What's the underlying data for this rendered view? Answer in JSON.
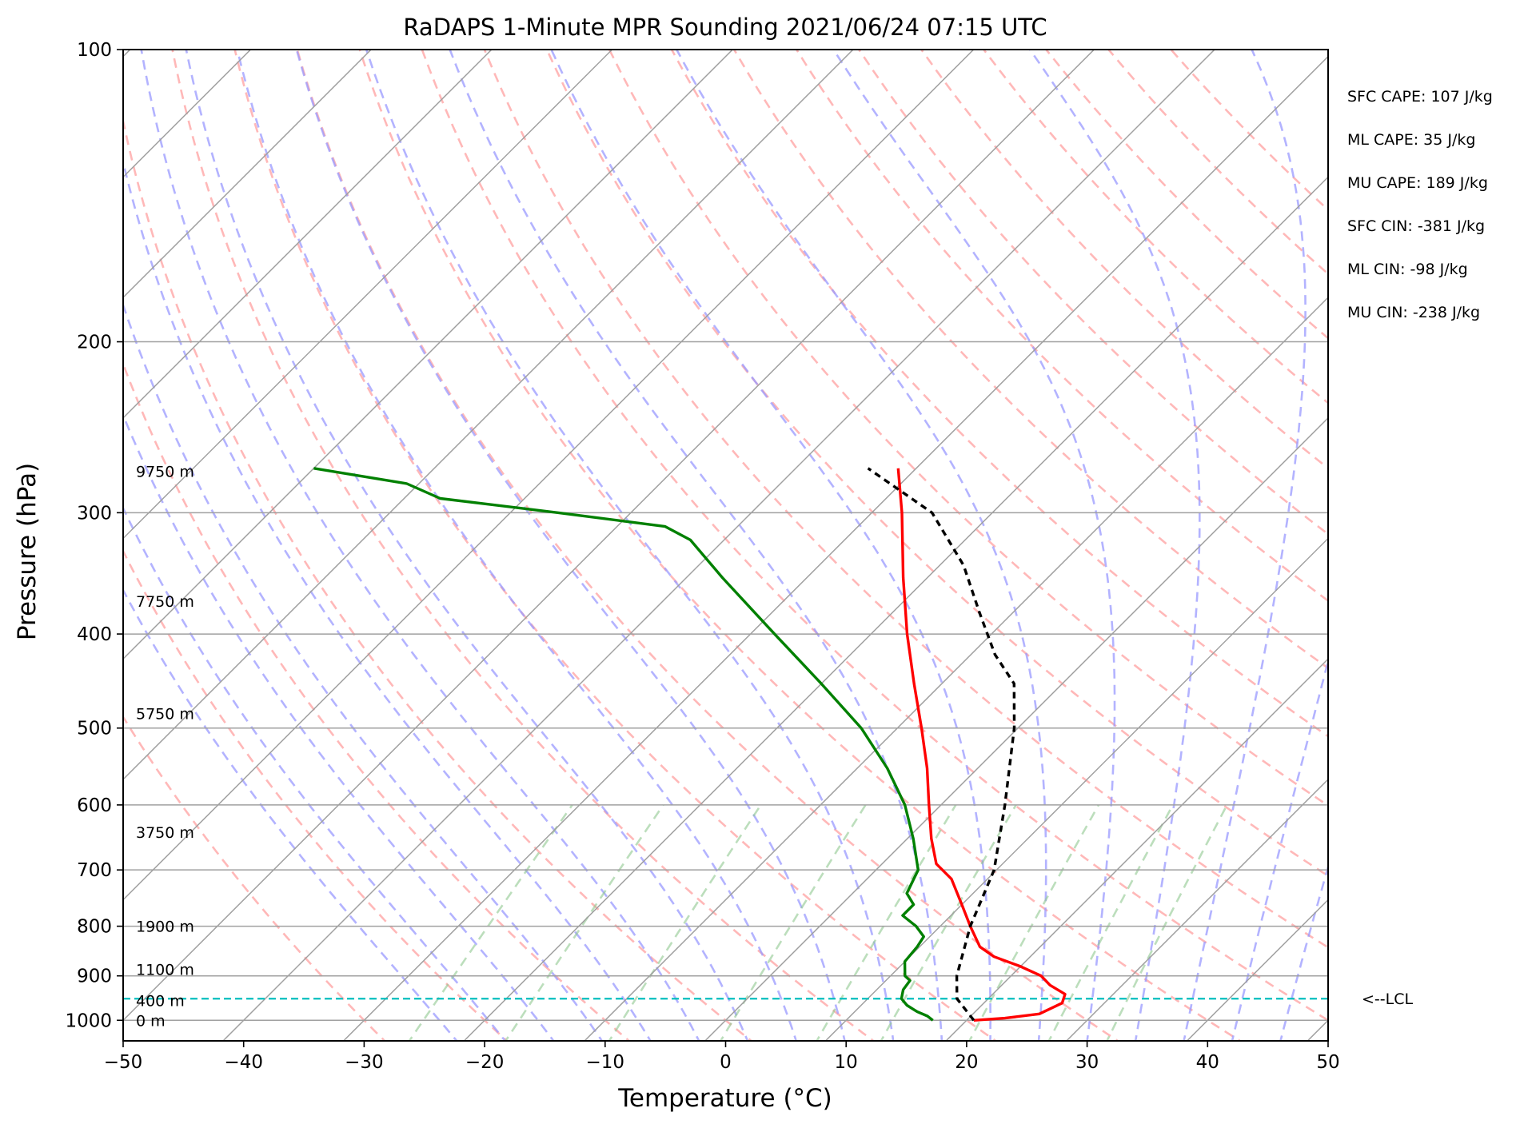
{
  "chart_data": {
    "type": "line",
    "title": "RaDAPS 1-Minute MPR Sounding 2021/06/24 07:15 UTC",
    "xlabel": "Temperature (°C)",
    "ylabel": "Pressure (hPa)",
    "xlim": [
      -50,
      50
    ],
    "ylim": [
      1050,
      100
    ],
    "y_scale": "log",
    "skew": "skew-T",
    "grid": true,
    "x_ticks": [
      -50,
      -40,
      -30,
      -20,
      -10,
      0,
      10,
      20,
      30,
      40,
      50
    ],
    "y_ticks": [
      100,
      200,
      300,
      400,
      500,
      600,
      700,
      800,
      900,
      1000
    ],
    "x_tick_labels": [
      "−50",
      "−40",
      "−30",
      "−20",
      "−10",
      "0",
      "10",
      "20",
      "30",
      "40",
      "50"
    ],
    "y_tick_labels": [
      "100",
      "200",
      "300",
      "400",
      "500",
      "600",
      "700",
      "800",
      "900",
      "1000"
    ],
    "series": [
      {
        "color": "#ff0000",
        "points": [
          [
            20.6,
            1000
          ],
          [
            23.0,
            995
          ],
          [
            25.5,
            985
          ],
          [
            26.5,
            960
          ],
          [
            26.0,
            940
          ],
          [
            24.0,
            920
          ],
          [
            22.5,
            900
          ],
          [
            20.0,
            880
          ],
          [
            17.0,
            860
          ],
          [
            15.0,
            840
          ],
          [
            12.5,
            800
          ],
          [
            10.0,
            760
          ],
          [
            7.0,
            715
          ],
          [
            4.5,
            690
          ],
          [
            2.0,
            650
          ],
          [
            -1.0,
            600
          ],
          [
            -4.2,
            550
          ],
          [
            -8.0,
            500
          ],
          [
            -12.3,
            450
          ],
          [
            -17.0,
            400
          ],
          [
            -22.0,
            350
          ],
          [
            -27.5,
            300
          ],
          [
            -31.5,
            270
          ]
        ]
      },
      {
        "color": "#008000",
        "points": [
          [
            17.2,
            1000
          ],
          [
            16.4,
            990
          ],
          [
            15.2,
            980
          ],
          [
            13.8,
            965
          ],
          [
            12.8,
            950
          ],
          [
            12.2,
            930
          ],
          [
            12.0,
            910
          ],
          [
            11.2,
            900
          ],
          [
            10.0,
            870
          ],
          [
            9.8,
            840
          ],
          [
            9.5,
            820
          ],
          [
            8.0,
            800
          ],
          [
            6.0,
            780
          ],
          [
            6.0,
            760
          ],
          [
            4.5,
            740
          ],
          [
            3.5,
            700
          ],
          [
            0.5,
            650
          ],
          [
            -3.0,
            600
          ],
          [
            -7.5,
            550
          ],
          [
            -13.0,
            500
          ],
          [
            -20.0,
            450
          ],
          [
            -28.0,
            400
          ],
          [
            -37.0,
            350
          ],
          [
            -42.8,
            320
          ],
          [
            -46.0,
            310
          ],
          [
            -56.0,
            300
          ],
          [
            -67.0,
            290
          ],
          [
            -71.0,
            280
          ],
          [
            -80.0,
            270
          ]
        ]
      },
      {
        "color": "#000000",
        "dash": "8,6",
        "points": [
          [
            20.6,
            1000
          ],
          [
            17.4,
            950
          ],
          [
            15.5,
            900
          ],
          [
            12.5,
            800
          ],
          [
            9.8,
            700
          ],
          [
            5.3,
            600
          ],
          [
            -0.3,
            500
          ],
          [
            -4.0,
            450
          ],
          [
            -8.0,
            420
          ],
          [
            -12.8,
            380
          ],
          [
            -18.0,
            340
          ],
          [
            -25.0,
            300
          ],
          [
            -34.0,
            270
          ]
        ]
      }
    ],
    "lcl": {
      "pressure": 950,
      "label": "<--LCL",
      "color": "#00bfbf"
    },
    "height_labels": [
      {
        "text": "9750 m",
        "pressure": 272
      },
      {
        "text": "7750 m",
        "pressure": 370
      },
      {
        "text": "5750 m",
        "pressure": 483
      },
      {
        "text": "3750 m",
        "pressure": 640
      },
      {
        "text": "1900 m",
        "pressure": 800
      },
      {
        "text": "1100 m",
        "pressure": 886
      },
      {
        "text": "400 m",
        "pressure": 954
      },
      {
        "text": "0 m",
        "pressure": 1000
      }
    ],
    "background": {
      "isotherm_color": "#a0a0a0",
      "dry_adiabat_color": "#ffa0a0",
      "moist_adiabat_color": "#9999ff",
      "mixing_ratio_color": "#8fc88f"
    }
  },
  "stats": [
    "SFC CAPE: 107 J/kg",
    "ML CAPE: 35 J/kg",
    "MU CAPE: 189 J/kg",
    "SFC CIN: -381 J/kg",
    "ML CIN: -98 J/kg",
    "MU CIN: -238 J/kg"
  ]
}
